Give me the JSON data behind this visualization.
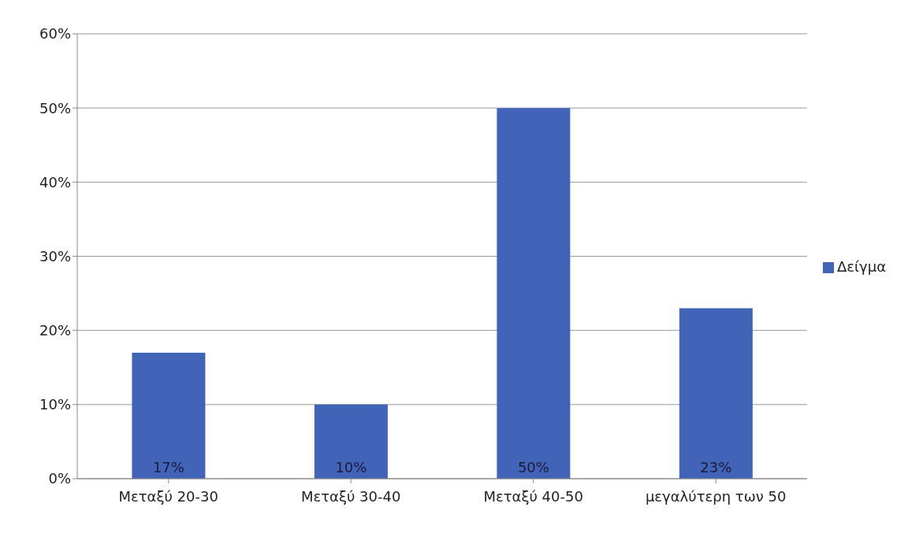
{
  "chart_data": {
    "type": "bar",
    "categories": [
      "Μεταξύ 20-30",
      "Μεταξύ 30-40",
      "Μεταξύ 40-50",
      "μεγαλύτερη των 50"
    ],
    "series": [
      {
        "name": "Δείγμα",
        "color": "#4163b8",
        "values": [
          17,
          10,
          50,
          23
        ],
        "value_labels": [
          "17%",
          "10%",
          "50%",
          "23%"
        ]
      }
    ],
    "ylim": [
      0,
      60
    ],
    "yticks": [
      {
        "value": 0,
        "label": "0%"
      },
      {
        "value": 10,
        "label": "10%"
      },
      {
        "value": 20,
        "label": "20%"
      },
      {
        "value": 30,
        "label": "30%"
      },
      {
        "value": 40,
        "label": "40%"
      },
      {
        "value": 50,
        "label": "50%"
      },
      {
        "value": 60,
        "label": "60%"
      }
    ],
    "grid": "y",
    "legend": "right"
  }
}
